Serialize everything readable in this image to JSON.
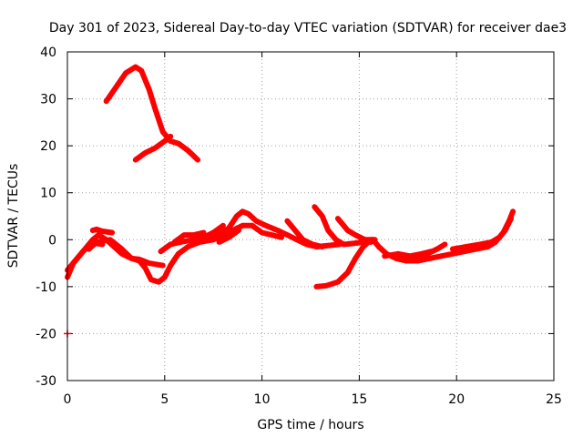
{
  "chart_data": {
    "type": "scatter",
    "title": "Day 301 of 2023, Sidereal Day-to-day VTEC variation (SDTVAR) for receiver dae3",
    "xlabel": "GPS time / hours",
    "ylabel": "SDTVAR / TECUs",
    "xlim": [
      0,
      25
    ],
    "ylim": [
      -30,
      40
    ],
    "xticks": [
      0,
      5,
      10,
      15,
      20,
      25
    ],
    "yticks": [
      -30,
      -20,
      -10,
      0,
      10,
      20,
      30,
      40
    ],
    "grid": true,
    "color": "#ff0000",
    "series": [
      {
        "name": "track-1",
        "points": [
          [
            2.0,
            29.5
          ],
          [
            2.5,
            32.5
          ],
          [
            3.0,
            35.5
          ],
          [
            3.5,
            36.8
          ],
          [
            3.8,
            36.0
          ],
          [
            4.2,
            32.0
          ],
          [
            4.5,
            28.0
          ],
          [
            4.9,
            23.0
          ],
          [
            5.3,
            21.0
          ],
          [
            5.7,
            20.5
          ],
          [
            6.2,
            19.0
          ],
          [
            6.7,
            17.0
          ]
        ]
      },
      {
        "name": "track-2",
        "points": [
          [
            3.5,
            17.0
          ],
          [
            4.0,
            18.5
          ],
          [
            4.5,
            19.5
          ],
          [
            5.0,
            21.0
          ],
          [
            5.3,
            22.0
          ]
        ]
      },
      {
        "name": "track-3",
        "points": [
          [
            0.0,
            -8.0
          ],
          [
            0.3,
            -5.0
          ],
          [
            0.7,
            -3.0
          ],
          [
            1.0,
            -1.5
          ],
          [
            1.3,
            0.0
          ],
          [
            1.6,
            1.0
          ],
          [
            2.0,
            0.0
          ],
          [
            2.4,
            -1.5
          ],
          [
            2.8,
            -3.0
          ],
          [
            3.3,
            -4.0
          ],
          [
            3.7,
            -4.2
          ],
          [
            4.2,
            -5.0
          ],
          [
            4.9,
            -5.5
          ]
        ]
      },
      {
        "name": "track-4",
        "points": [
          [
            0.0,
            -6.5
          ],
          [
            0.4,
            -4.5
          ],
          [
            0.8,
            -2.5
          ],
          [
            1.2,
            -1.0
          ],
          [
            1.5,
            -0.8
          ],
          [
            1.8,
            -1.0
          ]
        ]
      },
      {
        "name": "track-5",
        "points": [
          [
            1.3,
            2.0
          ],
          [
            1.5,
            2.2
          ],
          [
            1.8,
            1.8
          ],
          [
            2.3,
            1.5
          ]
        ]
      },
      {
        "name": "track-6",
        "points": [
          [
            1.1,
            -2.0
          ],
          [
            1.5,
            -0.5
          ],
          [
            2.2,
            0.0
          ],
          [
            2.8,
            -2.0
          ],
          [
            3.3,
            -4.0
          ],
          [
            3.7,
            -4.5
          ],
          [
            4.0,
            -6.0
          ],
          [
            4.3,
            -8.5
          ],
          [
            4.7,
            -9.0
          ],
          [
            5.0,
            -8.0
          ],
          [
            5.3,
            -5.5
          ],
          [
            5.7,
            -3.0
          ],
          [
            6.2,
            -1.5
          ],
          [
            6.8,
            -0.5
          ],
          [
            7.5,
            0.0
          ],
          [
            8.0,
            1.0
          ],
          [
            8.5,
            2.0
          ],
          [
            9.0,
            3.0
          ],
          [
            9.5,
            3.0
          ],
          [
            10.0,
            1.5
          ],
          [
            10.5,
            1.0
          ],
          [
            11.0,
            0.5
          ]
        ]
      },
      {
        "name": "track-7",
        "points": [
          [
            4.8,
            -2.5
          ],
          [
            5.3,
            -1.0
          ],
          [
            5.8,
            -0.5
          ],
          [
            6.5,
            0.0
          ],
          [
            7.2,
            0.5
          ],
          [
            7.8,
            1.0
          ],
          [
            8.3,
            2.5
          ],
          [
            8.7,
            5.0
          ],
          [
            9.0,
            6.0
          ],
          [
            9.3,
            5.5
          ],
          [
            9.7,
            4.0
          ],
          [
            10.2,
            3.0
          ],
          [
            10.8,
            2.0
          ],
          [
            11.3,
            1.0
          ],
          [
            11.8,
            0.0
          ],
          [
            12.3,
            -1.0
          ],
          [
            12.8,
            -1.5
          ],
          [
            13.5,
            -1.2
          ],
          [
            14.0,
            -1.0
          ]
        ]
      },
      {
        "name": "track-8",
        "points": [
          [
            5.5,
            -0.5
          ],
          [
            6.0,
            1.0
          ],
          [
            6.5,
            1.0
          ],
          [
            7.0,
            1.5
          ]
        ]
      },
      {
        "name": "track-9",
        "points": [
          [
            7.0,
            0.5
          ],
          [
            7.5,
            1.5
          ],
          [
            8.0,
            3.0
          ]
        ]
      },
      {
        "name": "track-10",
        "points": [
          [
            7.8,
            -0.5
          ],
          [
            8.3,
            0.5
          ],
          [
            8.8,
            2.0
          ]
        ]
      },
      {
        "name": "track-11",
        "points": [
          [
            11.3,
            4.0
          ],
          [
            11.7,
            2.0
          ],
          [
            12.1,
            0.0
          ],
          [
            12.6,
            -1.0
          ],
          [
            13.1,
            -1.5
          ]
        ]
      },
      {
        "name": "track-12",
        "points": [
          [
            12.7,
            7.0
          ],
          [
            13.1,
            5.0
          ],
          [
            13.4,
            2.0
          ],
          [
            13.8,
            0.0
          ],
          [
            14.2,
            -1.0
          ],
          [
            14.7,
            -0.8
          ],
          [
            15.2,
            -0.5
          ],
          [
            15.6,
            -0.5
          ]
        ]
      },
      {
        "name": "track-13",
        "points": [
          [
            13.9,
            4.5
          ],
          [
            14.4,
            2.0
          ],
          [
            14.8,
            1.0
          ],
          [
            15.3,
            0.0
          ],
          [
            15.8,
            0.0
          ]
        ]
      },
      {
        "name": "track-14",
        "points": [
          [
            12.8,
            -10.0
          ],
          [
            13.3,
            -9.8
          ],
          [
            13.9,
            -9.0
          ],
          [
            14.4,
            -7.0
          ],
          [
            14.8,
            -4.0
          ],
          [
            15.2,
            -1.5
          ],
          [
            15.6,
            0.0
          ]
        ]
      },
      {
        "name": "track-15",
        "points": [
          [
            15.7,
            0.0
          ],
          [
            16.0,
            -1.5
          ],
          [
            16.4,
            -3.0
          ],
          [
            16.9,
            -4.0
          ],
          [
            17.4,
            -4.5
          ],
          [
            18.0,
            -4.5
          ],
          [
            18.6,
            -4.0
          ],
          [
            19.2,
            -3.5
          ],
          [
            19.8,
            -3.0
          ],
          [
            20.4,
            -2.5
          ],
          [
            21.0,
            -2.0
          ],
          [
            21.6,
            -1.5
          ],
          [
            22.0,
            -0.5
          ],
          [
            22.4,
            1.5
          ],
          [
            22.7,
            4.0
          ],
          [
            22.9,
            6.0
          ]
        ]
      },
      {
        "name": "track-16",
        "points": [
          [
            16.3,
            -3.5
          ],
          [
            17.0,
            -3.0
          ],
          [
            17.6,
            -3.5
          ],
          [
            18.2,
            -3.0
          ],
          [
            18.7,
            -2.5
          ]
        ]
      },
      {
        "name": "track-17",
        "points": [
          [
            17.0,
            -4.0
          ],
          [
            17.8,
            -3.5
          ],
          [
            18.5,
            -3.0
          ],
          [
            19.0,
            -2.0
          ],
          [
            19.4,
            -1.0
          ]
        ]
      },
      {
        "name": "track-18",
        "points": [
          [
            19.8,
            -2.0
          ],
          [
            20.5,
            -1.5
          ],
          [
            21.2,
            -1.0
          ],
          [
            21.8,
            -0.5
          ],
          [
            22.2,
            0.5
          ],
          [
            22.5,
            2.0
          ],
          [
            22.8,
            4.5
          ]
        ]
      }
    ],
    "outliers": [
      [
        0.0,
        -20.0
      ]
    ]
  }
}
